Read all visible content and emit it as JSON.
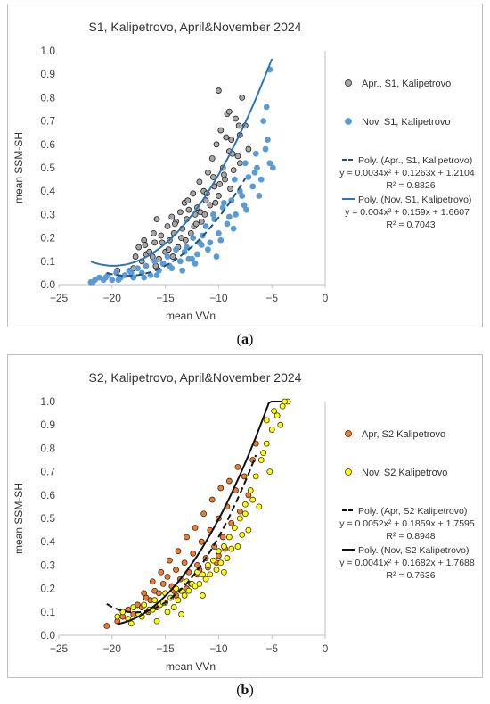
{
  "captions": {
    "a_open": "(",
    "a_letter": "a",
    "a_close": ")",
    "b_open": "(",
    "b_letter": "b",
    "b_close": ")"
  },
  "chart_data": [
    {
      "type": "scatter",
      "title": "S1, Kalipetrovo, April&November 2024",
      "xlabel": "mean VVn",
      "ylabel": "mean SSM-SH",
      "xlim": [
        -25,
        0
      ],
      "ylim": [
        0,
        1
      ],
      "xticks": [
        "−25",
        "−20",
        "−15",
        "−10",
        "−5",
        "0"
      ],
      "yticks": [
        "0.0",
        "0.1",
        "0.2",
        "0.3",
        "0.4",
        "0.5",
        "0.6",
        "0.7",
        "0.8",
        "0.9",
        "1.0"
      ],
      "grid": false,
      "legend_position": "right",
      "series": [
        {
          "name": "Apr., S1, Kalipetrovo",
          "marker": "circle-gray-outlined",
          "color": "#a6a6a6",
          "edge": "#222222",
          "x": [
            -19.5,
            -18.0,
            -17.5,
            -17.2,
            -17.0,
            -16.8,
            -16.5,
            -16.2,
            -16.0,
            -15.8,
            -15.6,
            -15.4,
            -15.2,
            -15.0,
            -14.8,
            -14.6,
            -14.4,
            -14.2,
            -14.0,
            -13.8,
            -13.6,
            -13.4,
            -13.2,
            -13.0,
            -12.8,
            -12.6,
            -12.4,
            -12.2,
            -12.0,
            -11.8,
            -11.6,
            -11.4,
            -11.2,
            -11.0,
            -10.8,
            -10.6,
            -10.4,
            -10.2,
            -10.0,
            -9.8,
            -9.6,
            -9.4,
            -9.2,
            -9.0,
            -8.8,
            -8.6,
            -8.4,
            -8.2,
            -8.0,
            -7.8,
            -7.5,
            -7.2,
            -17.8,
            -16.9,
            -16.1,
            -15.3,
            -14.7,
            -14.1,
            -13.5,
            -12.9,
            -12.3,
            -11.7,
            -11.1,
            -10.5,
            -9.9,
            -9.3,
            -8.7,
            -8.1,
            -15.9,
            -14.3,
            -13.1,
            -12.1,
            -11.3,
            -10.3,
            -9.5,
            -8.9,
            -10.0,
            -9.0,
            -8.0
          ],
          "y": [
            0.06,
            0.07,
            0.16,
            0.1,
            0.19,
            0.13,
            0.14,
            0.12,
            0.18,
            0.28,
            0.11,
            0.21,
            0.09,
            0.14,
            0.25,
            0.19,
            0.29,
            0.22,
            0.27,
            0.16,
            0.31,
            0.24,
            0.35,
            0.28,
            0.32,
            0.22,
            0.39,
            0.3,
            0.33,
            0.44,
            0.27,
            0.4,
            0.36,
            0.48,
            0.34,
            0.54,
            0.42,
            0.6,
            0.38,
            0.66,
            0.5,
            0.45,
            0.73,
            0.57,
            0.62,
            0.49,
            0.71,
            0.55,
            0.52,
            0.8,
            0.68,
            0.58,
            0.12,
            0.17,
            0.22,
            0.18,
            0.15,
            0.26,
            0.2,
            0.36,
            0.25,
            0.31,
            0.39,
            0.46,
            0.43,
            0.63,
            0.56,
            0.68,
            0.08,
            0.12,
            0.19,
            0.26,
            0.3,
            0.35,
            0.47,
            0.41,
            0.83,
            0.74,
            0.64
          ]
        },
        {
          "name": "Nov, S1, Kalipetrovo",
          "marker": "circle-blue",
          "color": "#5b9bd5",
          "edge": "#5b9bd5",
          "x": [
            -22.0,
            -21.6,
            -21.2,
            -20.8,
            -20.4,
            -20.0,
            -19.6,
            -19.2,
            -18.8,
            -18.4,
            -18.0,
            -17.6,
            -17.2,
            -16.8,
            -16.4,
            -16.0,
            -15.6,
            -15.2,
            -14.8,
            -14.4,
            -14.0,
            -13.6,
            -13.2,
            -12.8,
            -12.4,
            -12.0,
            -11.6,
            -11.2,
            -10.8,
            -10.4,
            -10.0,
            -9.6,
            -9.2,
            -8.8,
            -8.4,
            -8.0,
            -7.6,
            -7.2,
            -6.8,
            -6.4,
            -6.0,
            -5.6,
            -5.2,
            -4.9,
            -21.8,
            -20.6,
            -19.4,
            -18.2,
            -17.0,
            -15.8,
            -14.6,
            -13.4,
            -12.2,
            -11.0,
            -9.8,
            -8.6,
            -7.4,
            -6.2,
            -5.4,
            -13.0,
            -11.5,
            -10.5,
            -9.5,
            -8.5,
            -7.5,
            -6.5,
            -5.8,
            -5.5,
            -5.2,
            -12.5,
            -11.8,
            -10.2,
            -9.0,
            -7.8,
            -6.6
          ],
          "y": [
            0.01,
            0.02,
            0.03,
            0.02,
            0.04,
            0.02,
            0.05,
            0.03,
            0.04,
            0.06,
            0.03,
            0.07,
            0.05,
            0.08,
            0.04,
            0.1,
            0.06,
            0.09,
            0.12,
            0.07,
            0.15,
            0.1,
            0.14,
            0.11,
            0.2,
            0.13,
            0.17,
            0.25,
            0.18,
            0.28,
            0.22,
            0.33,
            0.26,
            0.36,
            0.3,
            0.4,
            0.34,
            0.46,
            0.42,
            0.5,
            0.45,
            0.58,
            0.52,
            0.5,
            0.01,
            0.03,
            0.02,
            0.05,
            0.03,
            0.04,
            0.08,
            0.06,
            0.09,
            0.15,
            0.19,
            0.24,
            0.32,
            0.38,
            0.62,
            0.16,
            0.21,
            0.3,
            0.35,
            0.45,
            0.52,
            0.56,
            0.7,
            0.76,
            0.92,
            0.11,
            0.18,
            0.12,
            0.29,
            0.38,
            0.48
          ]
        },
        {
          "name": "Poly. (Apr., S1, Kalipetrovo)",
          "kind": "trendline",
          "style": "dashed",
          "color": "#1f4e79",
          "equation": "y = 0.0034x² + 0.1263x + 1.2104",
          "r2": "R² = 0.8826",
          "coef": [
            0.0034,
            0.1263,
            1.2104
          ],
          "x_range": [
            -20.5,
            -7.5
          ]
        },
        {
          "name": "Poly. (Nov, S1, Kalipetrovo)",
          "kind": "trendline",
          "style": "solid",
          "color": "#2e75b6",
          "equation": "y = 0.004x² + 0.159x + 1.6607",
          "r2": "R² = 0.7043",
          "coef": [
            0.004,
            0.159,
            1.6607
          ],
          "x_range": [
            -22,
            -5
          ]
        }
      ]
    },
    {
      "type": "scatter",
      "title": "S2, Kalipetrovo, April&November 2024",
      "xlabel": "mean VVn",
      "ylabel": "mean SSM-SH",
      "xlim": [
        -25,
        0
      ],
      "ylim": [
        0,
        1
      ],
      "xticks": [
        "−25",
        "−20",
        "−15",
        "−10",
        "−5",
        "0"
      ],
      "yticks": [
        "0.0",
        "0.1",
        "0.2",
        "0.3",
        "0.4",
        "0.5",
        "0.6",
        "0.7",
        "0.8",
        "0.9",
        "1.0"
      ],
      "grid": false,
      "legend_position": "right",
      "series": [
        {
          "name": "Apr, S2 Kalipetrovo",
          "marker": "circle-orange",
          "color": "#ed7d31",
          "edge": "#3a2a1a",
          "x": [
            -20.5,
            -19.5,
            -19.0,
            -18.5,
            -18.0,
            -17.6,
            -17.2,
            -16.8,
            -16.4,
            -16.0,
            -15.6,
            -15.2,
            -14.8,
            -14.4,
            -14.0,
            -13.6,
            -13.2,
            -12.8,
            -12.4,
            -12.0,
            -11.6,
            -11.2,
            -10.8,
            -10.4,
            -10.0,
            -9.6,
            -9.2,
            -8.8,
            -8.4,
            -8.0,
            -7.6,
            -7.2,
            -6.8,
            -6.5,
            -17.0,
            -16.2,
            -15.4,
            -14.6,
            -13.8,
            -13.0,
            -12.2,
            -11.4,
            -10.6,
            -9.8,
            -9.0,
            -8.2,
            -15.0,
            -14.0,
            -13.0,
            -12.0,
            -11.0,
            -10.0,
            -16.6,
            -15.8,
            -14.2,
            -12.6,
            -11.8,
            -10.2,
            -9.4
          ],
          "y": [
            0.04,
            0.06,
            0.08,
            0.11,
            0.09,
            0.13,
            0.12,
            0.16,
            0.15,
            0.19,
            0.18,
            0.22,
            0.25,
            0.21,
            0.28,
            0.24,
            0.31,
            0.27,
            0.35,
            0.3,
            0.4,
            0.33,
            0.45,
            0.38,
            0.5,
            0.42,
            0.55,
            0.48,
            0.62,
            0.53,
            0.68,
            0.6,
            0.75,
            0.82,
            0.18,
            0.23,
            0.27,
            0.32,
            0.36,
            0.42,
            0.46,
            0.52,
            0.58,
            0.63,
            0.66,
            0.72,
            0.14,
            0.17,
            0.2,
            0.26,
            0.29,
            0.34,
            0.1,
            0.12,
            0.19,
            0.22,
            0.28,
            0.31,
            0.37
          ]
        },
        {
          "name": "Nov, S2 Kalipetrovo",
          "marker": "circle-yellow",
          "color": "#ffff00",
          "edge": "#3a3a1a",
          "x": [
            -19.5,
            -19.0,
            -18.5,
            -18.0,
            -17.5,
            -17.0,
            -16.5,
            -16.0,
            -15.5,
            -15.0,
            -14.5,
            -14.0,
            -13.5,
            -13.0,
            -12.5,
            -12.0,
            -11.5,
            -11.0,
            -10.5,
            -10.0,
            -9.5,
            -9.0,
            -8.5,
            -8.0,
            -7.5,
            -7.0,
            -6.5,
            -6.0,
            -5.5,
            -5.0,
            -4.5,
            -4.0,
            -3.5,
            -18.2,
            -17.2,
            -16.2,
            -15.2,
            -14.2,
            -13.2,
            -12.2,
            -11.2,
            -10.2,
            -9.2,
            -8.2,
            -7.2,
            -6.2,
            -5.2,
            -4.2,
            -15.8,
            -14.8,
            -13.8,
            -12.8,
            -11.8,
            -10.8,
            -9.8,
            -8.8,
            -7.8,
            -6.8,
            -5.8,
            -4.8,
            -3.8,
            -13.5,
            -11.5,
            -9.5,
            -7.5,
            -5.5
          ],
          "y": [
            0.08,
            0.1,
            0.07,
            0.12,
            0.09,
            0.13,
            0.11,
            0.15,
            0.13,
            0.18,
            0.16,
            0.2,
            0.19,
            0.23,
            0.22,
            0.27,
            0.26,
            0.3,
            0.32,
            0.36,
            0.38,
            0.42,
            0.46,
            0.5,
            0.56,
            0.62,
            0.68,
            0.75,
            0.82,
            0.88,
            0.94,
            0.98,
            1.0,
            0.05,
            0.08,
            0.11,
            0.14,
            0.12,
            0.17,
            0.21,
            0.24,
            0.28,
            0.33,
            0.38,
            0.45,
            0.55,
            0.7,
            0.9,
            0.06,
            0.1,
            0.15,
            0.19,
            0.22,
            0.26,
            0.31,
            0.37,
            0.43,
            0.58,
            0.78,
            0.96,
            1.0,
            0.09,
            0.17,
            0.27,
            0.52,
            0.92
          ]
        },
        {
          "name": "Poly. (Apr, S2 Kalipetrovo)",
          "kind": "trendline",
          "style": "dashed",
          "color": "#111111",
          "equation": "y = 0.0052x² + 0.1859x + 1.7595",
          "r2": "R² = 0.8948",
          "coef": [
            0.0052,
            0.1859,
            1.7595
          ],
          "x_range": [
            -20.5,
            -6.5
          ]
        },
        {
          "name": "Poly. (Nov, S2 Kalipetrovo)",
          "kind": "trendline",
          "style": "solid",
          "color": "#111111",
          "equation": "y = 0.0041x² + 0.1682x + 1.7688",
          "r2": "R² = 0.7636",
          "coef": [
            0.0041,
            0.1682,
            1.7688
          ],
          "x_range": [
            -19.5,
            -4
          ]
        }
      ]
    }
  ]
}
